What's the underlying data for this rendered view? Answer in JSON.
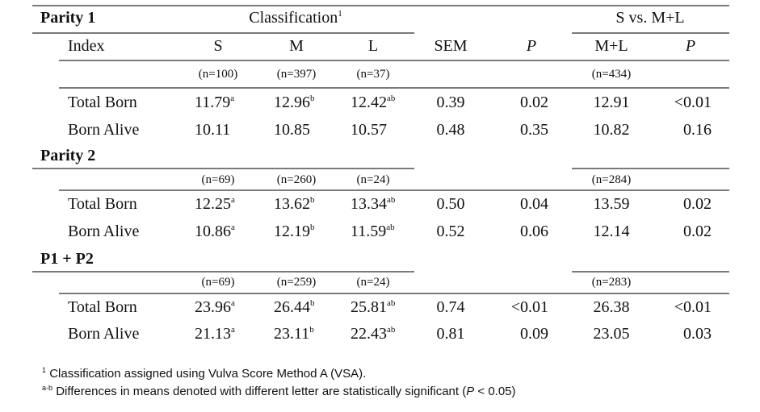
{
  "header": {
    "classification_label": "Classification",
    "classification_sup": "1",
    "contrast_label": "S vs. M+L",
    "columns": [
      "Index",
      "S",
      "M",
      "L",
      "SEM",
      "P",
      "M+L",
      "P"
    ]
  },
  "sections": [
    {
      "label": "Parity 1",
      "n": {
        "S": "(n=100)",
        "M": "(n=397)",
        "L": "(n=37)",
        "ML": "(n=434)"
      },
      "rows": [
        {
          "index": "Total Born",
          "S": [
            "11.79",
            "a"
          ],
          "M": [
            "12.96",
            "b"
          ],
          "L": [
            "12.42",
            "ab"
          ],
          "SEM": "0.39",
          "P": "0.02",
          "ML": "12.91",
          "P2": "<0.01"
        },
        {
          "index": "Born Alive",
          "S": [
            "10.11",
            ""
          ],
          "M": [
            "10.85",
            ""
          ],
          "L": [
            "10.57",
            ""
          ],
          "SEM": "0.48",
          "P": "0.35",
          "ML": "10.82",
          "P2": "0.16"
        }
      ]
    },
    {
      "label": "Parity 2",
      "n": {
        "S": "(n=69)",
        "M": "(n=260)",
        "L": "(n=24)",
        "ML": "(n=284)"
      },
      "rows": [
        {
          "index": "Total Born",
          "S": [
            "12.25",
            "a"
          ],
          "M": [
            "13.62",
            "b"
          ],
          "L": [
            "13.34",
            "ab"
          ],
          "SEM": "0.50",
          "P": "0.04",
          "ML": "13.59",
          "P2": "0.02"
        },
        {
          "index": "Born Alive",
          "S": [
            "10.86",
            "a"
          ],
          "M": [
            "12.19",
            "b"
          ],
          "L": [
            "11.59",
            "ab"
          ],
          "SEM": "0.52",
          "P": "0.06",
          "ML": "12.14",
          "P2": "0.02"
        }
      ]
    },
    {
      "label": "P1 + P2",
      "n": {
        "S": "(n=69)",
        "M": "(n=259)",
        "L": "(n=24)",
        "ML": "(n=283)"
      },
      "rows": [
        {
          "index": "Total Born",
          "S": [
            "23.96",
            "a"
          ],
          "M": [
            "26.44",
            "b"
          ],
          "L": [
            "25.81",
            "ab"
          ],
          "SEM": "0.74",
          "P": "<0.01",
          "ML": "26.38",
          "P2": "<0.01"
        },
        {
          "index": "Born Alive",
          "S": [
            "21.13",
            "a"
          ],
          "M": [
            "23.11",
            "b"
          ],
          "L": [
            "22.43",
            "ab"
          ],
          "SEM": "0.81",
          "P": "0.09",
          "ML": "23.05",
          "P2": "0.03"
        }
      ]
    }
  ],
  "footnotes": [
    {
      "mark": "1",
      "text": "Classification assigned using Vulva Score Method A (VSA)."
    },
    {
      "mark": "a-b",
      "text": "Differences in means denoted with different letter are statistically significant (",
      "italic": "P",
      "tail": " < 0.05)"
    }
  ]
}
